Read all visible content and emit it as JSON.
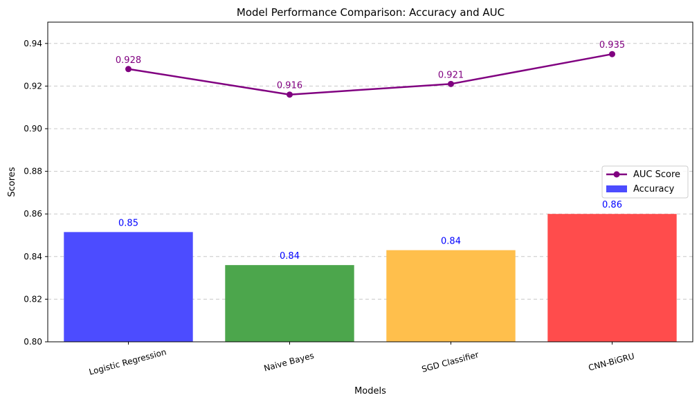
{
  "chart_data": {
    "type": "bar",
    "title": "Model Performance Comparison: Accuracy and AUC",
    "xlabel": "Models",
    "ylabel": "Scores",
    "ylim": [
      0.8,
      0.95
    ],
    "yticks": [
      "0.80",
      "0.82",
      "0.84",
      "0.86",
      "0.88",
      "0.90",
      "0.92",
      "0.94"
    ],
    "ytick_values": [
      0.8,
      0.82,
      0.84,
      0.86,
      0.88,
      0.9,
      0.92,
      0.94
    ],
    "grid": "horizontal-dashed",
    "legend_position": "right",
    "categories": [
      "Logistic Regression",
      "Naive Bayes",
      "SGD Classifier",
      "CNN-BiGRU"
    ],
    "series": [
      {
        "name": "Accuracy",
        "type": "bar",
        "values": [
          0.8515,
          0.836,
          0.843,
          0.86
        ],
        "labels": [
          "0.85",
          "0.84",
          "0.84",
          "0.86"
        ],
        "colors": [
          "#4c4cff",
          "#4ca64c",
          "#ffbf4c",
          "#ff4c4c"
        ],
        "legend_color": "#4c4cff",
        "label_color": "#0000ff"
      },
      {
        "name": "AUC Score",
        "type": "line",
        "values": [
          0.928,
          0.916,
          0.921,
          0.935
        ],
        "labels": [
          "0.928",
          "0.916",
          "0.921",
          "0.935"
        ],
        "color": "#800080",
        "label_color": "#800080"
      }
    ]
  }
}
